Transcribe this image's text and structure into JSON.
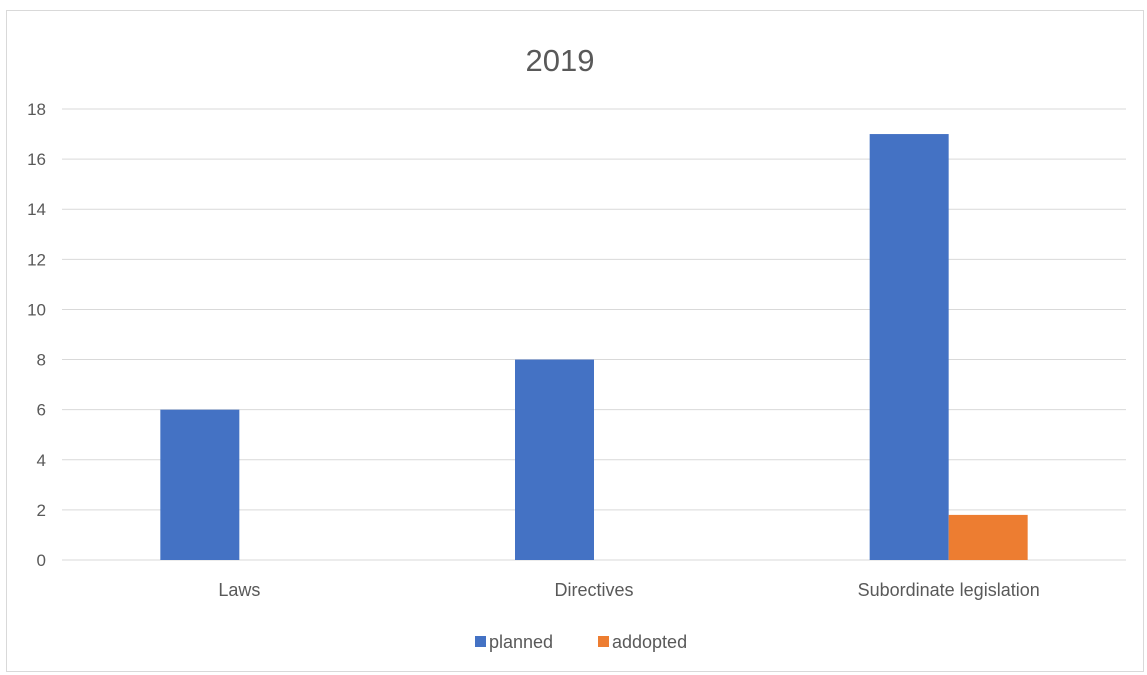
{
  "chart_data": {
    "type": "bar",
    "title": "2019",
    "categories": [
      "Laws",
      "Directives",
      "Subordinate legislation"
    ],
    "series": [
      {
        "name": "planned",
        "values": [
          6,
          8,
          17
        ],
        "color": "#4472C4"
      },
      {
        "name": "addopted",
        "values": [
          0,
          0,
          1.8
        ],
        "color": "#ED7D31"
      }
    ],
    "xlabel": "",
    "ylabel": "",
    "ylim": [
      0,
      18
    ],
    "yticks": [
      0,
      2,
      4,
      6,
      8,
      10,
      12,
      14,
      16,
      18
    ],
    "grid": true,
    "legend_position": "bottom"
  }
}
